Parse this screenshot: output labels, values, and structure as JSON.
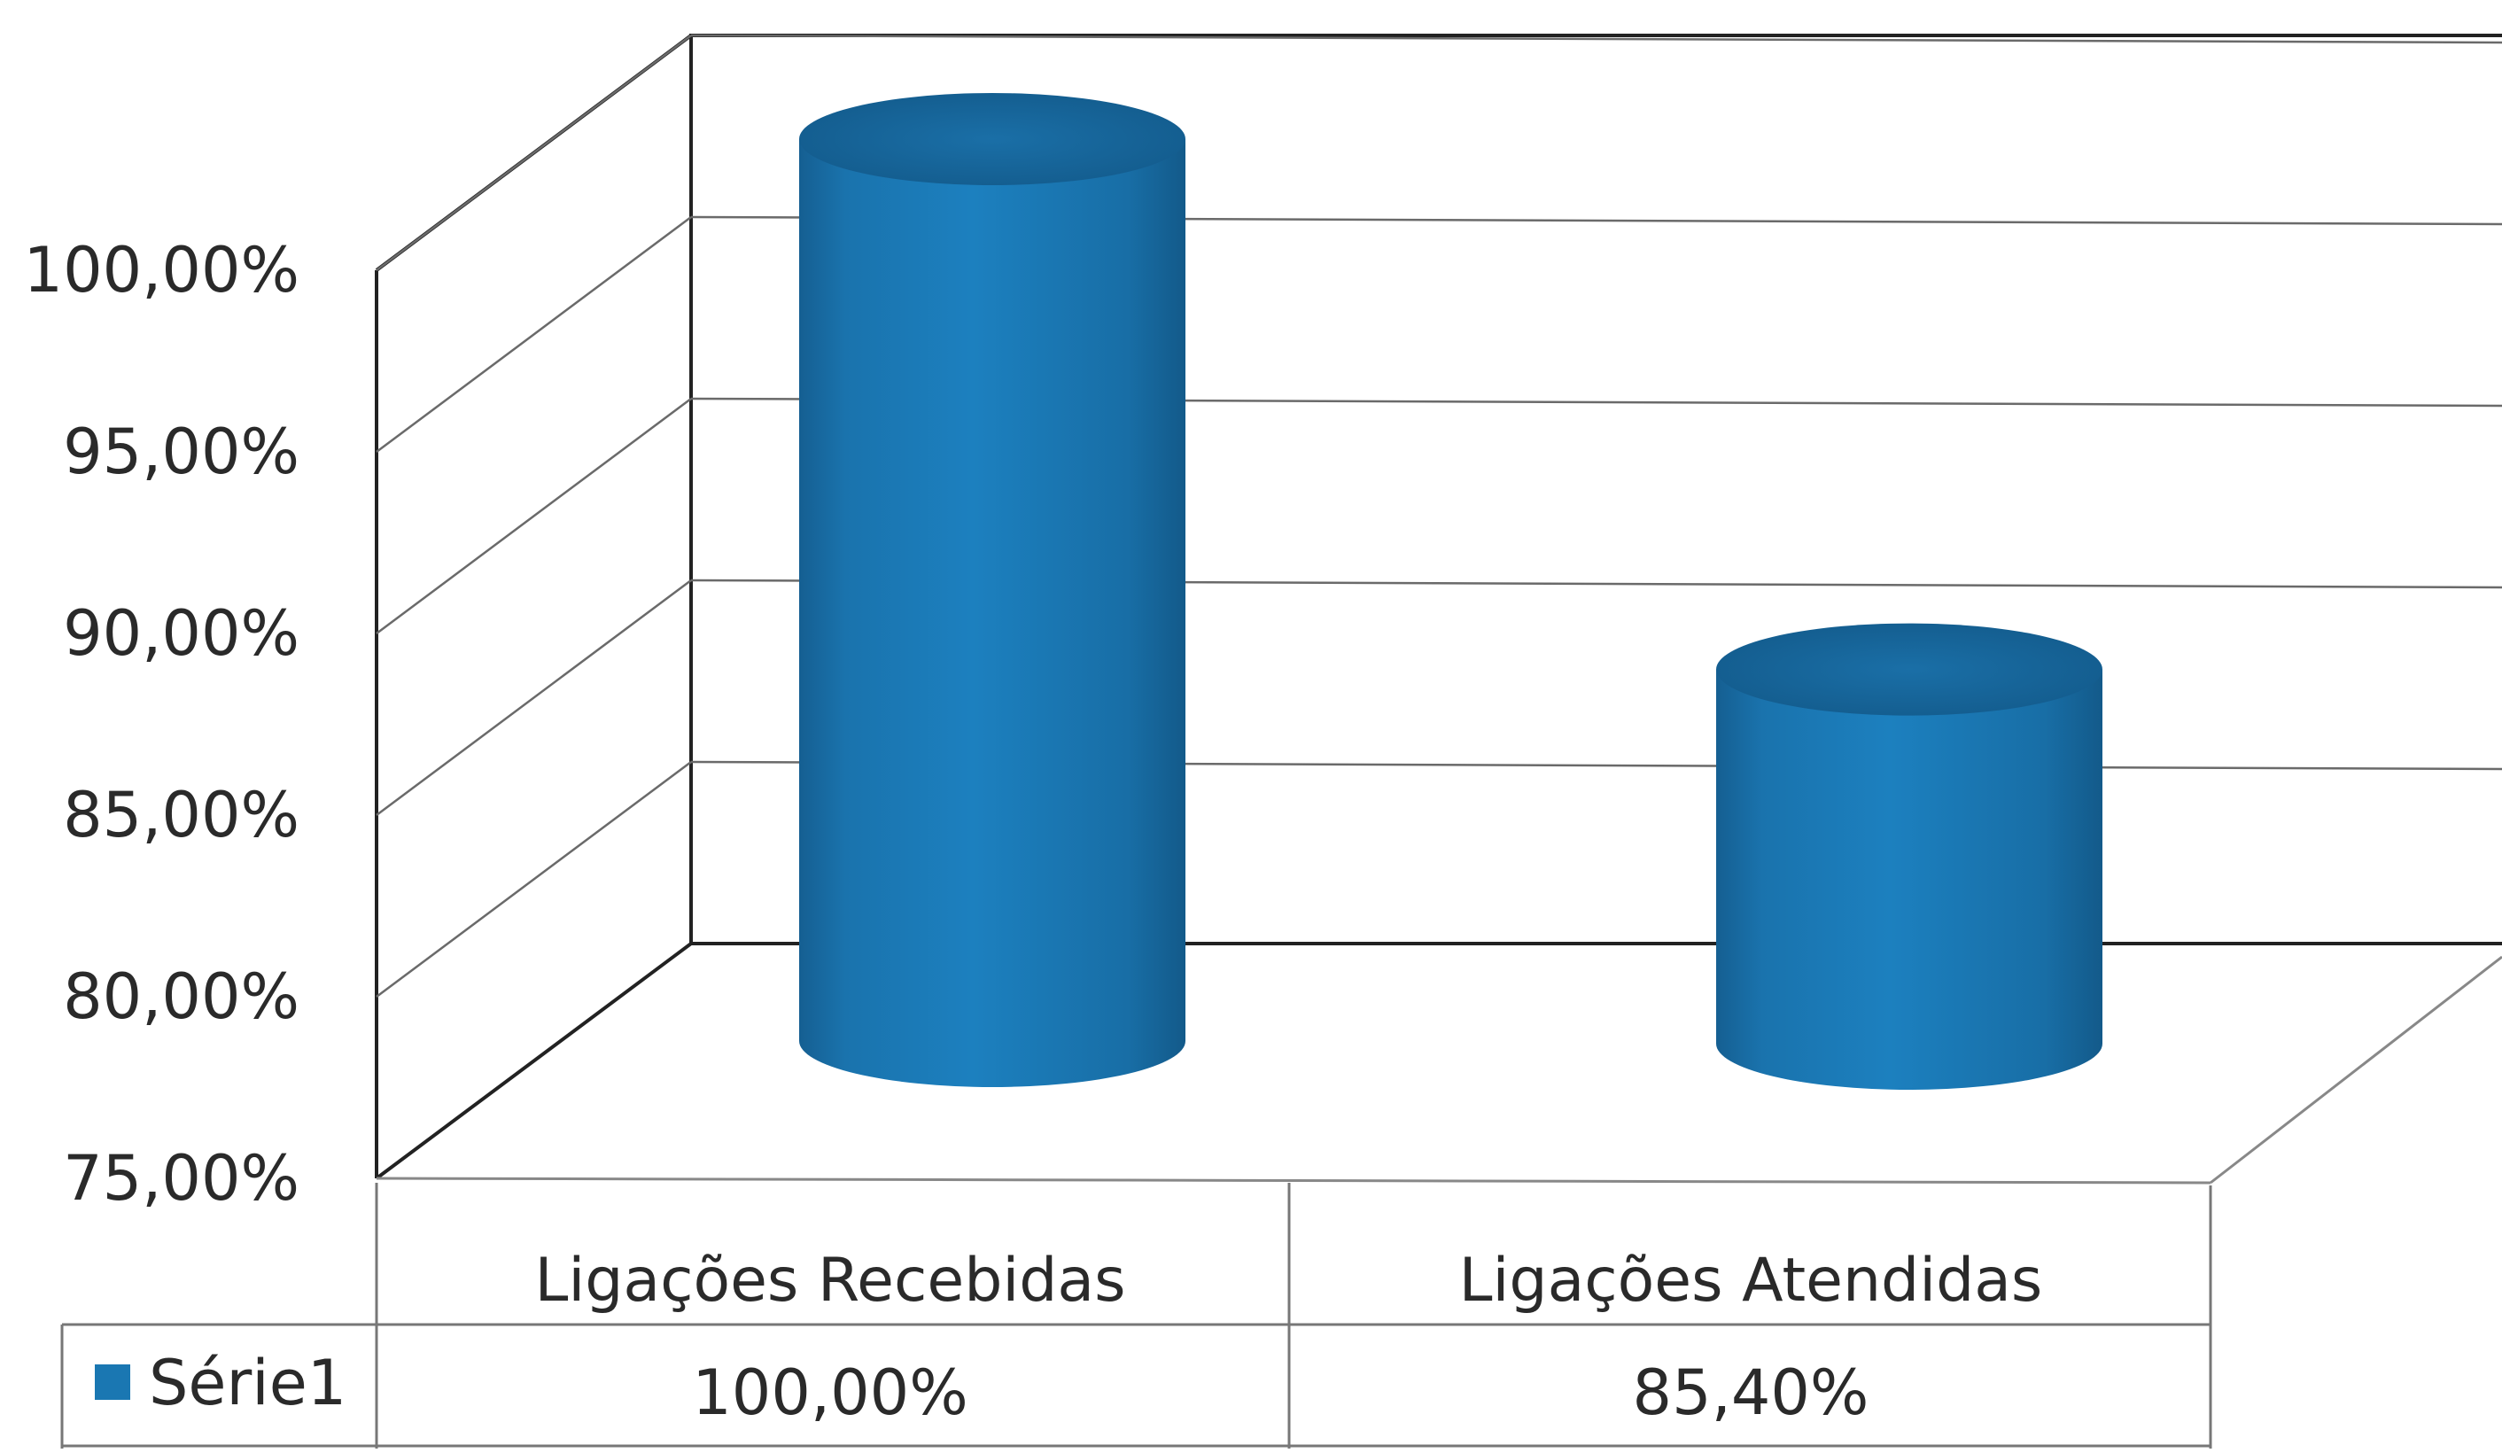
{
  "chart_data": {
    "type": "bar",
    "bar_shape": "3d-cylinder",
    "categories": [
      "Ligações Recebidas",
      "Ligações Atendidas"
    ],
    "series": [
      {
        "name": "Série1",
        "values": [
          100.0,
          85.4
        ],
        "value_labels": [
          "100,00%",
          "85,40%"
        ],
        "color": "#1a77b2"
      }
    ],
    "ylim": [
      75,
      100
    ],
    "yticks": [
      75,
      80,
      85,
      90,
      95,
      100
    ],
    "ytick_labels": [
      "75,00%",
      "80,00%",
      "85,00%",
      "90,00%",
      "95,00%",
      "100,00%"
    ],
    "grid": true,
    "data_table": true,
    "title": "",
    "xlabel": "",
    "ylabel": ""
  }
}
